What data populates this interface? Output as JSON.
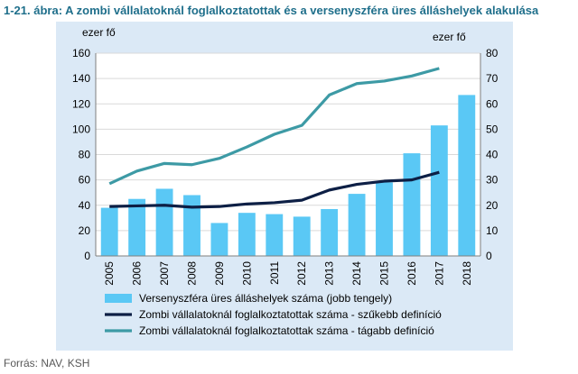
{
  "figure_title": "1-21. ábra: A zombi vállalatoknál foglalkoztatottak és a versenyszféra üres álláshelyek alakulása",
  "source": "Forrás: NAV, KSH",
  "chart_data": {
    "type": "bar+line",
    "title": "1-21. ábra: A zombi vállalatoknál foglalkoztatottak és a versenyszféra üres álláshelyek alakulása",
    "categories": [
      "2005",
      "2006",
      "2007",
      "2008",
      "2009",
      "2010",
      "2011",
      "2012",
      "2013",
      "2014",
      "2015",
      "2016",
      "2017",
      "2018"
    ],
    "left_axis": {
      "label": "ezer fő",
      "ylim": [
        0,
        160
      ],
      "ticks": [
        0,
        20,
        40,
        60,
        80,
        100,
        120,
        140,
        160
      ]
    },
    "right_axis": {
      "label": "ezer fő",
      "ylim": [
        0,
        80
      ],
      "ticks": [
        0,
        10,
        20,
        30,
        40,
        50,
        60,
        70,
        80
      ]
    },
    "series": [
      {
        "name": "Versenyszféra üres álláshelyek száma (jobb tengely)",
        "type": "bar",
        "axis": "right",
        "color": "#5ac8f5",
        "values": [
          19,
          22.5,
          26.5,
          24,
          13,
          17,
          16.5,
          15.5,
          18.5,
          24.5,
          29,
          40.5,
          51.5,
          63.5
        ]
      },
      {
        "name": "Zombi vállalatoknál foglalkoztatottak száma - szűkebb definíció",
        "type": "line",
        "axis": "left",
        "color": "#0d1f45",
        "values": [
          39,
          39.5,
          40,
          38.5,
          39,
          41,
          42,
          44,
          52,
          56.5,
          59,
          60,
          66,
          null
        ]
      },
      {
        "name": "Zombi vállalatoknál foglalkoztatottak száma - tágabb definíció",
        "type": "line",
        "axis": "left",
        "color": "#3d9aa5",
        "values": [
          57,
          67,
          73,
          72,
          77,
          86,
          96,
          103,
          127,
          136,
          138,
          142,
          148,
          null
        ]
      }
    ],
    "grid": true,
    "legend_position": "bottom"
  }
}
